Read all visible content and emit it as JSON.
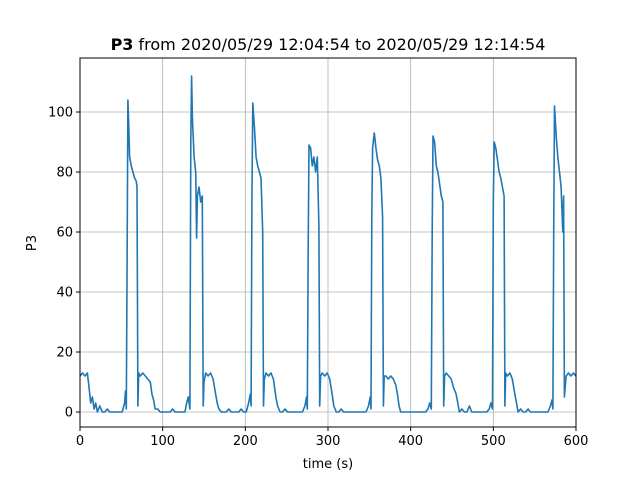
{
  "chart_data": {
    "type": "line",
    "title_bold": "P3",
    "title_rest": " from 2020/05/29 12:04:54 to 2020/05/29 12:14:54",
    "xlabel": "time (s)",
    "ylabel": "P3",
    "xlim": [
      0,
      600
    ],
    "ylim": [
      -5,
      118
    ],
    "xticks": [
      0,
      100,
      200,
      300,
      400,
      500,
      600
    ],
    "yticks": [
      0,
      20,
      40,
      60,
      80,
      100
    ],
    "grid": true,
    "series": [
      {
        "color": "#1f77b4",
        "points": [
          [
            0,
            12
          ],
          [
            3,
            13
          ],
          [
            6,
            12
          ],
          [
            9,
            13
          ],
          [
            11,
            8
          ],
          [
            13,
            3
          ],
          [
            15,
            5
          ],
          [
            17,
            1
          ],
          [
            19,
            3
          ],
          [
            21,
            0
          ],
          [
            24,
            2
          ],
          [
            27,
            0
          ],
          [
            30,
            0
          ],
          [
            33,
            1
          ],
          [
            36,
            0
          ],
          [
            39,
            0
          ],
          [
            42,
            0
          ],
          [
            45,
            0
          ],
          [
            48,
            0
          ],
          [
            51,
            0
          ],
          [
            54,
            3
          ],
          [
            55,
            7
          ],
          [
            56,
            1
          ],
          [
            57,
            50
          ],
          [
            58,
            104
          ],
          [
            59,
            95
          ],
          [
            60,
            85
          ],
          [
            62,
            82
          ],
          [
            64,
            80
          ],
          [
            66,
            78
          ],
          [
            68,
            77
          ],
          [
            69,
            75
          ],
          [
            70,
            2
          ],
          [
            71,
            13
          ],
          [
            73,
            12
          ],
          [
            76,
            13
          ],
          [
            79,
            12
          ],
          [
            82,
            11
          ],
          [
            85,
            10
          ],
          [
            87,
            6
          ],
          [
            89,
            4
          ],
          [
            91,
            1
          ],
          [
            94,
            1
          ],
          [
            97,
            0
          ],
          [
            100,
            0
          ],
          [
            103,
            0
          ],
          [
            106,
            0
          ],
          [
            109,
            0
          ],
          [
            112,
            1
          ],
          [
            115,
            0
          ],
          [
            118,
            0
          ],
          [
            121,
            0
          ],
          [
            124,
            0
          ],
          [
            127,
            0
          ],
          [
            129,
            3
          ],
          [
            131,
            5
          ],
          [
            133,
            1
          ],
          [
            134,
            90
          ],
          [
            135,
            112
          ],
          [
            136,
            98
          ],
          [
            138,
            85
          ],
          [
            140,
            80
          ],
          [
            141,
            58
          ],
          [
            142,
            72
          ],
          [
            144,
            75
          ],
          [
            146,
            70
          ],
          [
            148,
            72
          ],
          [
            149,
            2
          ],
          [
            150,
            10
          ],
          [
            152,
            13
          ],
          [
            155,
            12
          ],
          [
            158,
            13
          ],
          [
            161,
            11
          ],
          [
            164,
            6
          ],
          [
            166,
            3
          ],
          [
            168,
            1
          ],
          [
            171,
            0
          ],
          [
            174,
            0
          ],
          [
            177,
            0
          ],
          [
            180,
            1
          ],
          [
            183,
            0
          ],
          [
            186,
            0
          ],
          [
            189,
            0
          ],
          [
            192,
            0
          ],
          [
            195,
            1
          ],
          [
            198,
            0
          ],
          [
            201,
            0
          ],
          [
            204,
            3
          ],
          [
            206,
            6
          ],
          [
            207,
            2
          ],
          [
            208,
            70
          ],
          [
            209,
            103
          ],
          [
            211,
            95
          ],
          [
            213,
            85
          ],
          [
            215,
            82
          ],
          [
            217,
            80
          ],
          [
            219,
            78
          ],
          [
            221,
            60
          ],
          [
            222,
            2
          ],
          [
            223,
            11
          ],
          [
            225,
            13
          ],
          [
            228,
            12
          ],
          [
            231,
            13
          ],
          [
            234,
            11
          ],
          [
            237,
            5
          ],
          [
            239,
            2
          ],
          [
            242,
            0
          ],
          [
            245,
            0
          ],
          [
            248,
            1
          ],
          [
            251,
            0
          ],
          [
            254,
            0
          ],
          [
            257,
            0
          ],
          [
            260,
            0
          ],
          [
            263,
            0
          ],
          [
            266,
            0
          ],
          [
            269,
            0
          ],
          [
            272,
            2
          ],
          [
            274,
            5
          ],
          [
            275,
            1
          ],
          [
            276,
            55
          ],
          [
            277,
            89
          ],
          [
            279,
            88
          ],
          [
            281,
            82
          ],
          [
            283,
            85
          ],
          [
            285,
            80
          ],
          [
            287,
            85
          ],
          [
            289,
            62
          ],
          [
            290,
            2
          ],
          [
            291,
            12
          ],
          [
            293,
            13
          ],
          [
            296,
            12
          ],
          [
            299,
            13
          ],
          [
            302,
            11
          ],
          [
            305,
            6
          ],
          [
            307,
            2
          ],
          [
            310,
            0
          ],
          [
            313,
            0
          ],
          [
            316,
            1
          ],
          [
            319,
            0
          ],
          [
            322,
            0
          ],
          [
            325,
            0
          ],
          [
            328,
            0
          ],
          [
            331,
            0
          ],
          [
            334,
            0
          ],
          [
            337,
            0
          ],
          [
            340,
            0
          ],
          [
            343,
            0
          ],
          [
            346,
            0
          ],
          [
            349,
            2
          ],
          [
            351,
            5
          ],
          [
            352,
            1
          ],
          [
            353,
            65
          ],
          [
            354,
            88
          ],
          [
            356,
            93
          ],
          [
            358,
            88
          ],
          [
            360,
            84
          ],
          [
            362,
            82
          ],
          [
            364,
            78
          ],
          [
            366,
            65
          ],
          [
            367,
            2
          ],
          [
            368,
            12
          ],
          [
            370,
            12
          ],
          [
            373,
            11
          ],
          [
            376,
            12
          ],
          [
            379,
            11
          ],
          [
            382,
            9
          ],
          [
            384,
            6
          ],
          [
            386,
            2
          ],
          [
            388,
            0
          ],
          [
            391,
            0
          ],
          [
            394,
            0
          ],
          [
            397,
            0
          ],
          [
            400,
            0
          ],
          [
            403,
            0
          ],
          [
            406,
            0
          ],
          [
            409,
            0
          ],
          [
            412,
            0
          ],
          [
            415,
            0
          ],
          [
            418,
            0
          ],
          [
            421,
            1
          ],
          [
            423,
            3
          ],
          [
            425,
            1
          ],
          [
            426,
            60
          ],
          [
            427,
            92
          ],
          [
            429,
            90
          ],
          [
            431,
            82
          ],
          [
            433,
            80
          ],
          [
            435,
            76
          ],
          [
            437,
            72
          ],
          [
            439,
            70
          ],
          [
            440,
            2
          ],
          [
            441,
            12
          ],
          [
            443,
            13
          ],
          [
            446,
            12
          ],
          [
            449,
            11
          ],
          [
            452,
            8
          ],
          [
            455,
            6
          ],
          [
            457,
            3
          ],
          [
            459,
            0
          ],
          [
            462,
            1
          ],
          [
            465,
            0
          ],
          [
            468,
            0
          ],
          [
            471,
            2
          ],
          [
            474,
            0
          ],
          [
            477,
            0
          ],
          [
            480,
            0
          ],
          [
            483,
            0
          ],
          [
            486,
            0
          ],
          [
            489,
            0
          ],
          [
            492,
            0
          ],
          [
            495,
            1
          ],
          [
            497,
            3
          ],
          [
            499,
            1
          ],
          [
            500,
            70
          ],
          [
            501,
            90
          ],
          [
            503,
            88
          ],
          [
            505,
            84
          ],
          [
            507,
            80
          ],
          [
            509,
            78
          ],
          [
            511,
            75
          ],
          [
            513,
            72
          ],
          [
            514,
            2
          ],
          [
            515,
            13
          ],
          [
            517,
            12
          ],
          [
            520,
            13
          ],
          [
            523,
            11
          ],
          [
            526,
            6
          ],
          [
            528,
            3
          ],
          [
            530,
            0
          ],
          [
            533,
            1
          ],
          [
            536,
            0
          ],
          [
            539,
            0
          ],
          [
            542,
            1
          ],
          [
            545,
            0
          ],
          [
            548,
            0
          ],
          [
            551,
            0
          ],
          [
            554,
            0
          ],
          [
            557,
            0
          ],
          [
            560,
            0
          ],
          [
            563,
            0
          ],
          [
            566,
            0
          ],
          [
            569,
            2
          ],
          [
            571,
            4
          ],
          [
            572,
            1
          ],
          [
            573,
            60
          ],
          [
            574,
            102
          ],
          [
            576,
            92
          ],
          [
            578,
            85
          ],
          [
            580,
            80
          ],
          [
            582,
            75
          ],
          [
            584,
            60
          ],
          [
            585,
            72
          ],
          [
            586,
            5
          ],
          [
            588,
            12
          ],
          [
            591,
            13
          ],
          [
            594,
            12
          ],
          [
            597,
            13
          ],
          [
            600,
            12
          ]
        ]
      }
    ]
  }
}
